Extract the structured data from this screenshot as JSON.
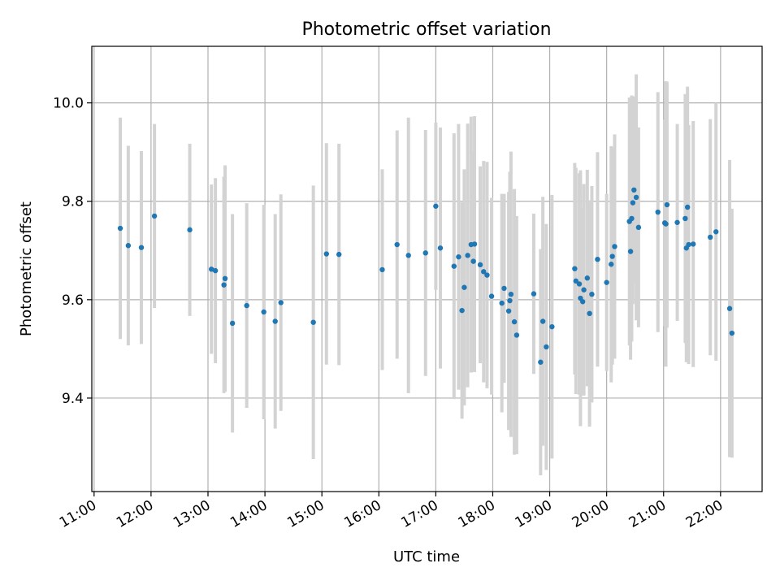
{
  "chart_data": {
    "type": "scatter",
    "title": "Photometric offset variation",
    "xlabel": "UTC time",
    "ylabel": "Photometric offset",
    "x_tick_labels": [
      "11:00",
      "12:00",
      "13:00",
      "14:00",
      "15:00",
      "16:00",
      "17:00",
      "18:00",
      "19:00",
      "20:00",
      "21:00",
      "22:00"
    ],
    "x_tick_hours": [
      11,
      12,
      13,
      14,
      15,
      16,
      17,
      18,
      19,
      20,
      21,
      22
    ],
    "y_ticks": [
      9.4,
      9.6,
      9.8,
      10.0
    ],
    "y_tick_labels": [
      "9.4",
      "9.6",
      "9.8",
      "10.0"
    ],
    "xlim_hours": [
      10.96,
      22.73
    ],
    "ylim": [
      9.21,
      10.115
    ],
    "grid": true,
    "series": [
      {
        "points_hours": [
          11.46,
          11.6,
          11.83,
          12.06,
          12.68,
          13.06,
          13.13,
          13.28,
          13.3,
          13.43,
          13.68,
          13.98,
          14.18,
          14.28,
          14.85,
          15.08,
          15.3,
          16.06,
          16.32,
          16.52,
          16.82,
          17.0,
          17.08,
          17.32,
          17.4,
          17.46,
          17.5,
          17.56,
          17.62,
          17.66,
          17.68,
          17.78,
          17.84,
          17.9,
          17.98,
          18.16,
          18.2,
          18.28,
          18.3,
          18.32,
          18.38,
          18.42,
          18.72,
          18.84,
          18.88,
          18.94,
          19.04,
          19.44,
          19.46,
          19.52,
          19.54,
          19.58,
          19.6,
          19.66,
          19.7,
          19.74,
          19.84,
          20.0,
          20.08,
          20.1,
          20.14,
          20.4,
          20.42,
          20.44,
          20.46,
          20.48,
          20.52,
          20.56,
          20.9,
          21.02,
          21.04,
          21.06,
          21.24,
          21.38,
          21.4,
          21.42,
          21.44,
          21.52,
          21.82,
          21.92,
          22.16,
          22.2
        ],
        "y": [
          9.745,
          9.71,
          9.706,
          9.77,
          9.742,
          9.662,
          9.659,
          9.63,
          9.643,
          9.552,
          9.588,
          9.575,
          9.556,
          9.594,
          9.554,
          9.693,
          9.692,
          9.661,
          9.712,
          9.69,
          9.695,
          9.79,
          9.705,
          9.668,
          9.687,
          9.578,
          9.625,
          9.69,
          9.712,
          9.678,
          9.713,
          9.671,
          9.657,
          9.65,
          9.607,
          9.593,
          9.623,
          9.577,
          9.598,
          9.611,
          9.555,
          9.528,
          9.612,
          9.473,
          9.556,
          9.504,
          9.545,
          9.663,
          9.638,
          9.632,
          9.603,
          9.596,
          9.62,
          9.644,
          9.572,
          9.611,
          9.682,
          9.635,
          9.672,
          9.688,
          9.708,
          9.759,
          9.698,
          9.765,
          9.797,
          9.823,
          9.808,
          9.747,
          9.778,
          9.756,
          9.754,
          9.793,
          9.757,
          9.765,
          9.705,
          9.788,
          9.712,
          9.713,
          9.727,
          9.738,
          9.582,
          9.532
        ],
        "yerr": [
          0.225,
          0.203,
          0.196,
          0.187,
          0.175,
          0.172,
          0.188,
          0.22,
          0.23,
          0.222,
          0.208,
          0.218,
          0.218,
          0.22,
          0.278,
          0.225,
          0.225,
          0.204,
          0.232,
          0.28,
          0.25,
          0.17,
          0.245,
          0.27,
          0.27,
          0.22,
          0.24,
          0.268,
          0.26,
          0.225,
          0.26,
          0.2,
          0.225,
          0.23,
          0.2,
          0.222,
          0.192,
          0.242,
          0.262,
          0.29,
          0.27,
          0.242,
          0.163,
          0.23,
          0.253,
          0.25,
          0.268,
          0.215,
          0.23,
          0.225,
          0.26,
          0.19,
          0.215,
          0.22,
          0.23,
          0.22,
          0.218,
          0.18,
          0.24,
          0.22,
          0.228,
          0.252,
          0.22,
          0.25,
          0.206,
          0.19,
          0.25,
          0.203,
          0.244,
          0.21,
          0.29,
          0.25,
          0.2,
          0.253,
          0.232,
          0.245,
          0.243,
          0.25,
          0.24,
          0.262,
          0.302,
          0.253
        ]
      }
    ],
    "marker_color": "#1f77b4",
    "errorbar_color": "#d3d3d3"
  }
}
